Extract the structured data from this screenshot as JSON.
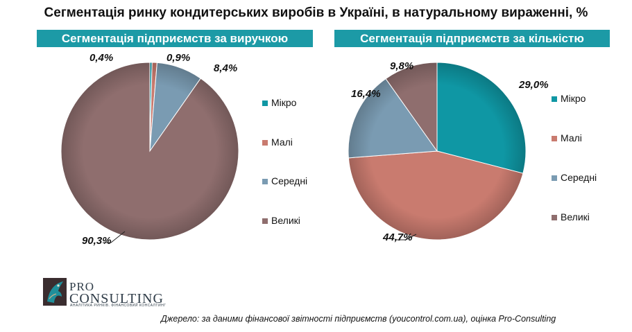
{
  "title": "Сегментація ринку кондитерських виробів в Україні, в натуральному вираженні, %",
  "colors": {
    "banner": "#1c9aa6",
    "series": [
      "#0f97a4",
      "#c97b6f",
      "#7a9bb2",
      "#8f6e6e"
    ]
  },
  "chart_data": [
    {
      "type": "pie",
      "title": "Сегментація підприємств за виручкою",
      "categories": [
        "Мікро",
        "Малі",
        "Середні",
        "Великі"
      ],
      "values": [
        0.4,
        0.9,
        8.4,
        90.3
      ],
      "labels": [
        "0,4%",
        "0,9%",
        "8,4%",
        "90,3%"
      ],
      "legend": "right"
    },
    {
      "type": "pie",
      "title": "Сегментація підприємств за кількістю",
      "categories": [
        "Мікро",
        "Малі",
        "Середні",
        "Великі"
      ],
      "values": [
        29.0,
        44.7,
        16.4,
        9.8
      ],
      "labels": [
        "29,0%",
        "44,7%",
        "16,4%",
        "9,8%"
      ],
      "legend": "right"
    }
  ],
  "logo": {
    "line1": "PRO",
    "line2": "CONSULTING",
    "tagline": "АНАЛІТИКА РИНКІВ. ФІНАНСОВИЙ КОНСАЛТИНГ"
  },
  "source": "Джерело: за даними фінансової звітності підприємств (youcontrol.com.ua), оцінка Pro-Consulting"
}
